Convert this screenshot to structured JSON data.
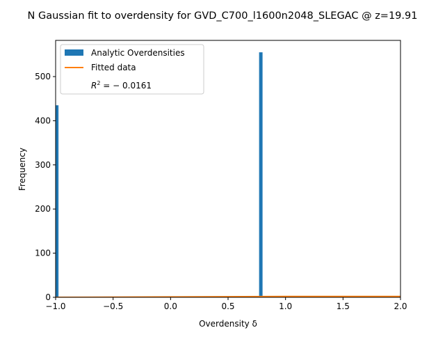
{
  "chart_data": {
    "type": "bar",
    "title": "N Gaussian fit to overdensity for GVD_C700_l1600n2048_SLEGAC @ z=19.91",
    "xlabel": "Overdensity δ",
    "ylabel": "Frequency",
    "xlim": [
      -1.0,
      2.0
    ],
    "ylim": [
      0,
      582
    ],
    "xticks": [
      -1.0,
      -0.5,
      0.0,
      0.5,
      1.0,
      1.5,
      2.0
    ],
    "xtick_labels": [
      "−1.0",
      "−0.5",
      "0.0",
      "0.5",
      "1.0",
      "1.5",
      "2.0"
    ],
    "yticks": [
      0,
      100,
      200,
      300,
      400,
      500
    ],
    "ytick_labels": [
      "0",
      "100",
      "200",
      "300",
      "400",
      "500"
    ],
    "legend_position": "top-left",
    "series": [
      {
        "name": "Analytic Overdensities",
        "kind": "histogram",
        "color": "#1f77b4",
        "bins": [
          {
            "x0": -1.03,
            "x1": -0.975,
            "count": 435
          },
          {
            "x0": 0.77,
            "x1": 0.8,
            "count": 555
          }
        ]
      },
      {
        "name": "Fitted data",
        "kind": "line",
        "color": "#ff7f0e",
        "x": [
          -1.0,
          0.0,
          1.0,
          2.0
        ],
        "y": [
          0,
          1,
          2,
          2
        ]
      }
    ],
    "annotation": {
      "r2_lhs": "R",
      "r2_sup": "2",
      "r2_rhs": " = − 0.0161"
    }
  }
}
